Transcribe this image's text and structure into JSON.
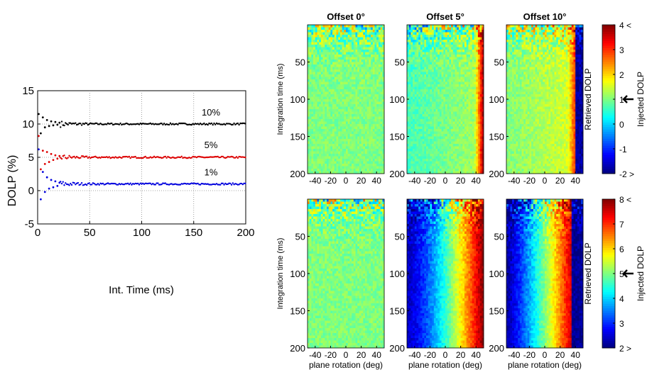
{
  "chart_data": [
    {
      "type": "scatter",
      "xlabel": "Int. Time (ms)",
      "ylabel": "DOLP (%)",
      "xlim": [
        0,
        200
      ],
      "ylim": [
        -5,
        15
      ],
      "xticks": [
        "0",
        "50",
        "100",
        "150",
        "200"
      ],
      "yticks": [
        "-5",
        "0",
        "5",
        "10",
        "15"
      ],
      "grid": true,
      "series": [
        {
          "name": "10%",
          "color": "#000000",
          "x": [
            1,
            3,
            5,
            7,
            9,
            11,
            13,
            15,
            17,
            19,
            21,
            25,
            30,
            40,
            60,
            100,
            150,
            200
          ],
          "y": [
            11.5,
            8.6,
            11.0,
            9.5,
            10.6,
            9.7,
            10.4,
            9.8,
            10.3,
            9.9,
            10.2,
            10.0,
            10.1,
            10.0,
            10.0,
            10.0,
            10.0,
            10.0
          ]
        },
        {
          "name": "5%",
          "color": "#dd0000",
          "x": [
            1,
            3,
            5,
            7,
            9,
            11,
            13,
            15,
            17,
            19,
            21,
            25,
            30,
            40,
            60,
            100,
            150,
            200
          ],
          "y": [
            8.2,
            3.2,
            6.0,
            4.0,
            5.8,
            4.3,
            5.5,
            4.6,
            5.3,
            4.8,
            5.2,
            5.0,
            5.1,
            5.0,
            5.0,
            5.0,
            5.0,
            5.0
          ]
        },
        {
          "name": "1%",
          "color": "#0000dd",
          "x": [
            1,
            3,
            5,
            7,
            9,
            11,
            13,
            15,
            17,
            19,
            21,
            25,
            30,
            40,
            60,
            100,
            150,
            200
          ],
          "y": [
            6.2,
            -1.3,
            2.8,
            -0.2,
            2.0,
            0.3,
            1.6,
            0.5,
            1.4,
            0.7,
            1.2,
            0.9,
            1.0,
            1.0,
            1.0,
            1.0,
            1.0,
            1.0
          ]
        }
      ]
    },
    {
      "type": "heatmap",
      "columns": [
        "Offset 0°",
        "Offset 5°",
        "Offset 10°"
      ],
      "xlabel": "plane rotation (deg)",
      "ylabel": "Integration time (ms)",
      "xticks": [
        "-40",
        "-20",
        "0",
        "20",
        "40"
      ],
      "yticks": [
        "50",
        "100",
        "150",
        "200"
      ],
      "rows": [
        {
          "injected_dolp": 1,
          "colorbar_ticks": [
            "4 <",
            "3",
            "2",
            "1",
            "0",
            "-1",
            "-2 >"
          ],
          "colorbar_min": -2,
          "colorbar_max": 4
        },
        {
          "injected_dolp": 5,
          "colorbar_ticks": [
            "8 <",
            "7",
            "6",
            "5",
            "4",
            "3",
            "2 >"
          ],
          "colorbar_min": 2,
          "colorbar_max": 8
        }
      ],
      "colorbar_label": "Retrieved DOLP",
      "injected_label": "Injected DOLP"
    }
  ]
}
